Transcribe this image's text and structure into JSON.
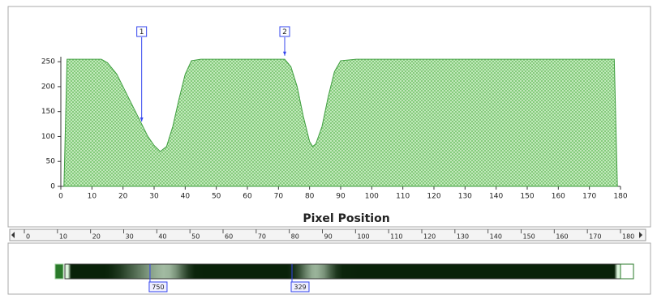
{
  "chart_data": {
    "type": "area",
    "x_label": "Pixel Position",
    "x": [
      1,
      2,
      5,
      10,
      13,
      15,
      18,
      20,
      22,
      24,
      26,
      28,
      30,
      32,
      34,
      36,
      38,
      40,
      42,
      45,
      50,
      60,
      70,
      72,
      74,
      76,
      78,
      80,
      81,
      82,
      84,
      86,
      88,
      90,
      95,
      100,
      120,
      140,
      160,
      178,
      179
    ],
    "values": [
      0,
      255,
      255,
      255,
      255,
      248,
      225,
      200,
      175,
      150,
      125,
      100,
      82,
      70,
      80,
      120,
      175,
      225,
      252,
      255,
      255,
      255,
      255,
      255,
      240,
      200,
      140,
      90,
      80,
      85,
      120,
      180,
      230,
      252,
      255,
      255,
      255,
      255,
      255,
      255,
      0
    ],
    "color": "#3f9e3f",
    "xlim": [
      0,
      180
    ],
    "xticks": [
      0,
      10,
      20,
      30,
      40,
      50,
      60,
      70,
      80,
      90,
      100,
      110,
      120,
      130,
      140,
      150,
      160,
      170,
      180
    ],
    "ylim": [
      0,
      260
    ],
    "yticks": [
      0,
      50,
      100,
      150,
      200,
      250
    ],
    "markers": [
      {
        "label": "1",
        "x": 26,
        "y": 130,
        "strip_label": "750"
      },
      {
        "label": "2",
        "x": 72,
        "y": 262,
        "strip_label": "329"
      }
    ],
    "ruler_ticks": [
      0,
      10,
      20,
      30,
      40,
      50,
      60,
      70,
      80,
      90,
      100,
      110,
      120,
      130,
      140,
      150,
      160,
      170,
      180
    ]
  }
}
